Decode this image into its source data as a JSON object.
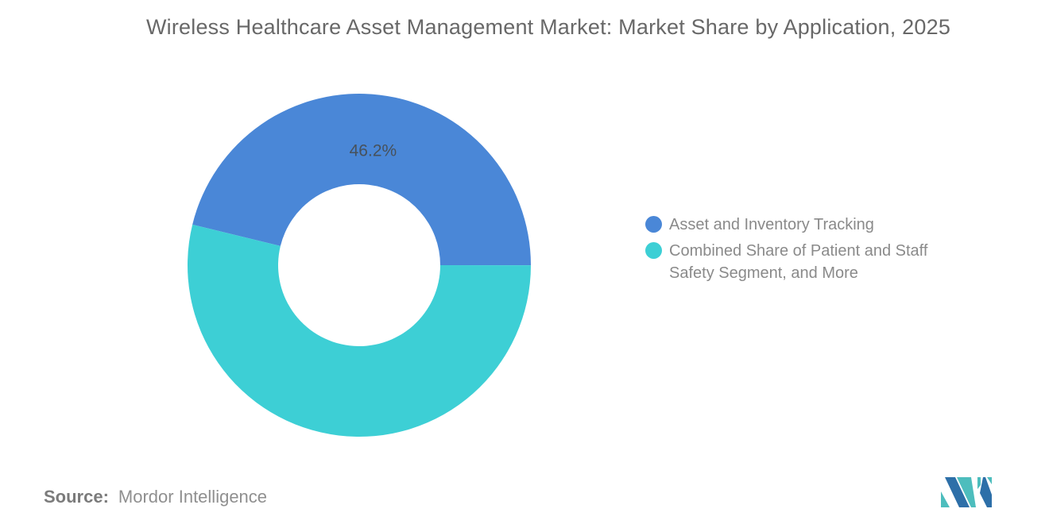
{
  "title": "Wireless Healthcare Asset Management Market: Market Share by Application, 2025",
  "chart_data": {
    "type": "pie",
    "title": "Wireless Healthcare Asset Management Market: Market Share by Application, 2025",
    "donut_hole_ratio": 0.47,
    "start_angle_deg": -76.3,
    "legend_position": "right",
    "data_label_color": "#47515b",
    "background": "#ffffff",
    "segments": [
      {
        "name": "Asset and Inventory Tracking",
        "value": 46.2,
        "label": "46.2%",
        "color": "#4A87D7"
      },
      {
        "name": "Combined Share of Patient and Staff Safety Segment, and More",
        "value": 53.8,
        "label": "",
        "color": "#3DCFD5"
      }
    ]
  },
  "footer": {
    "source_label": "Source:",
    "source_value": "Mordor Intelligence"
  },
  "logo": {
    "alt": "mordor-intelligence-logo",
    "colors": {
      "blue": "#2D6FA8",
      "teal": "#4DBDBD"
    }
  }
}
